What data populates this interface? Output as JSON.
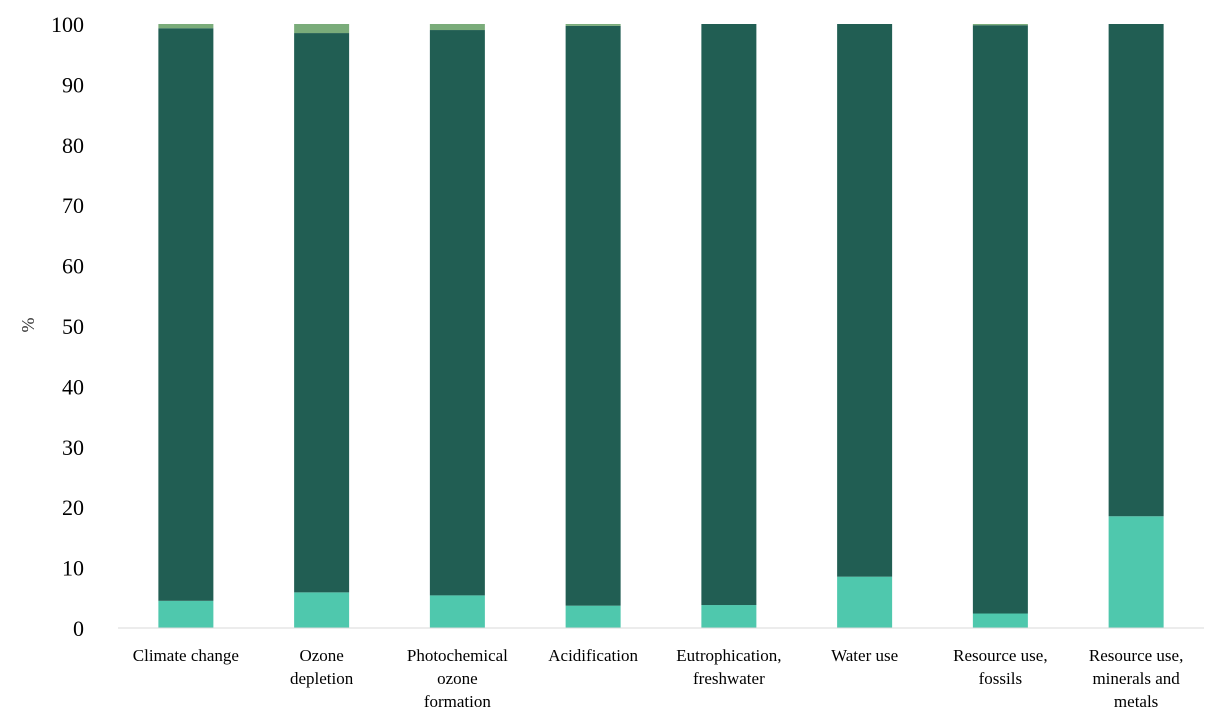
{
  "chart_data": {
    "type": "bar",
    "stacked": true,
    "ylabel": "%",
    "ylim": [
      0,
      100
    ],
    "yticks": [
      0,
      10,
      20,
      30,
      40,
      50,
      60,
      70,
      80,
      90,
      100
    ],
    "grid": false,
    "legend": "none",
    "categories": [
      [
        "Climate change"
      ],
      [
        "Ozone",
        "depletion"
      ],
      [
        "Photochemical",
        "ozone",
        "formation"
      ],
      [
        "Acidification"
      ],
      [
        "Eutrophication,",
        "freshwater"
      ],
      [
        "Water use"
      ],
      [
        "Resource use,",
        "fossils"
      ],
      [
        "Resource use,",
        "minerals and",
        "metals"
      ]
    ],
    "series": [
      {
        "color": "#4fc8ad",
        "values": [
          4.5,
          5.9,
          5.4,
          3.7,
          3.8,
          8.5,
          2.4,
          18.5
        ]
      },
      {
        "color": "#215e53",
        "values": [
          94.8,
          92.6,
          93.6,
          96.0,
          96.2,
          91.5,
          97.4,
          81.5
        ]
      },
      {
        "color": "#7aac7a",
        "values": [
          0.7,
          1.5,
          1.0,
          0.3,
          0.0,
          0.0,
          0.2,
          0.0
        ]
      }
    ]
  }
}
